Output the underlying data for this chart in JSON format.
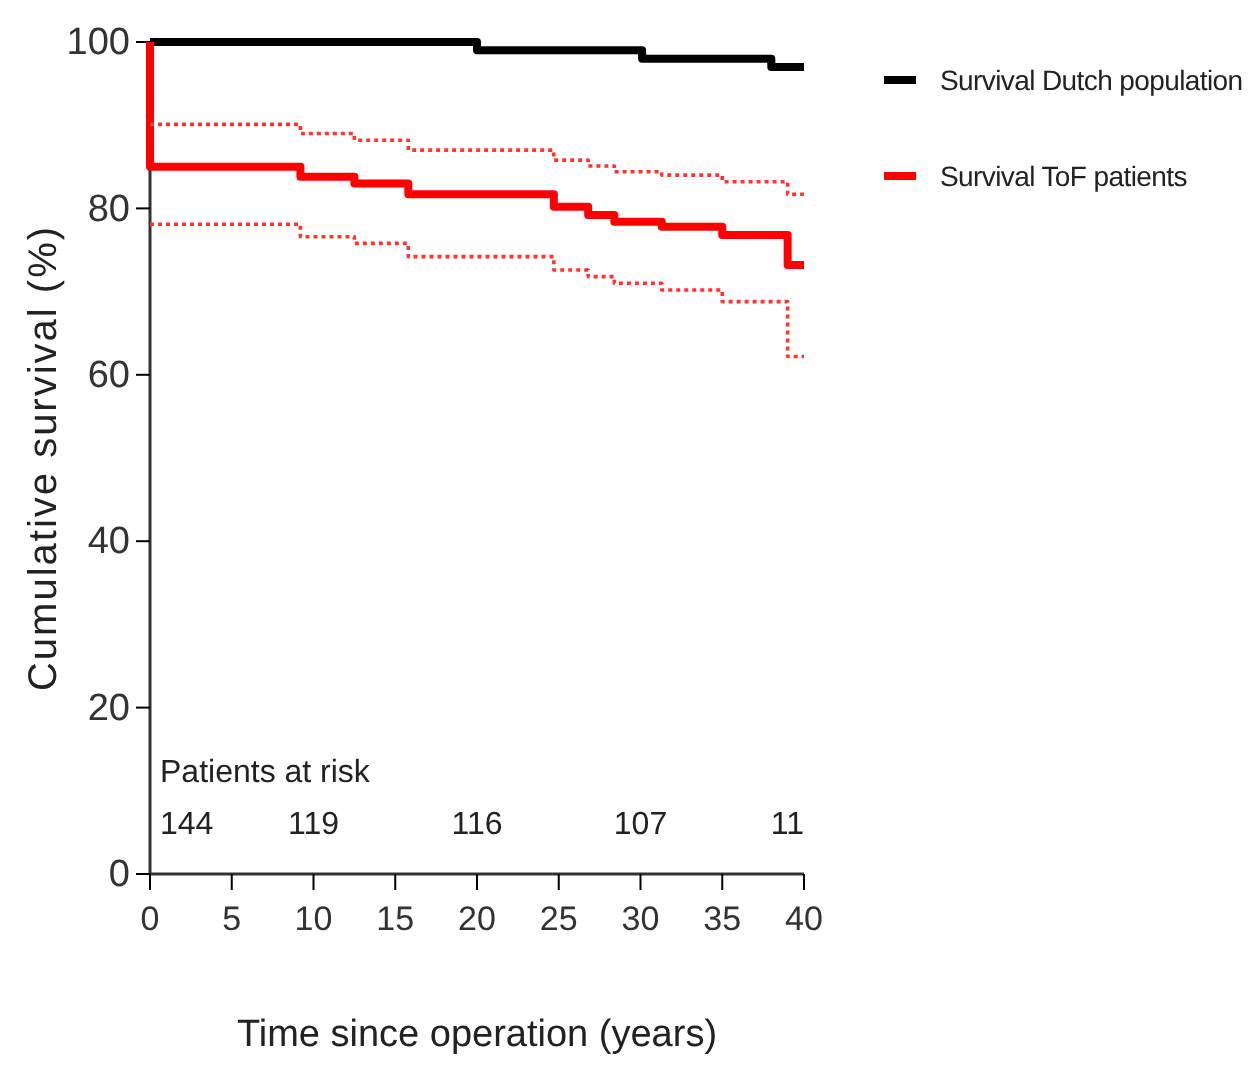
{
  "chart_data": {
    "type": "step",
    "xlabel": "Time since operation (years)",
    "ylabel": "Cumulative survival (%)",
    "xlim": [
      0,
      40
    ],
    "xticks": [
      0,
      5,
      10,
      15,
      20,
      25,
      30,
      35,
      40
    ],
    "ylim": [
      0,
      100
    ],
    "yticks": [
      0,
      20,
      40,
      60,
      80,
      100
    ],
    "grid": false,
    "legend": "top right",
    "marker": "none",
    "series": [
      {
        "name": "Survival Dutch population",
        "color": "#000000",
        "line_style": "solid",
        "x": [
          0,
          20,
          30.1,
          38,
          40
        ],
        "values": [
          100,
          99,
          98,
          97,
          97
        ]
      },
      {
        "name": "Survival ToF patients",
        "color": "#ff0000",
        "line_style": "solid",
        "x": [
          0,
          0,
          9.2,
          12.5,
          15.8,
          24.7,
          26.8,
          28.4,
          31.3,
          35,
          39,
          40
        ],
        "values": [
          100,
          85,
          83.8,
          83,
          81.7,
          80.2,
          79.2,
          78.4,
          77.8,
          76.8,
          73.2,
          73.2
        ]
      },
      {
        "color": "#ff3333",
        "line_style": "dotted",
        "x": [
          0,
          9.2,
          12.5,
          15.8,
          24.7,
          26.8,
          28.4,
          31.3,
          35,
          39,
          40
        ],
        "values": [
          90.1,
          89,
          88.2,
          87,
          85.8,
          85.1,
          84.4,
          84,
          83.2,
          81.7,
          81.7
        ]
      },
      {
        "color": "#ff3333",
        "line_style": "dotted",
        "x": [
          0,
          9.2,
          12.5,
          15.8,
          24.7,
          26.8,
          28.4,
          31.3,
          35,
          39,
          40
        ],
        "values": [
          78.1,
          76.6,
          75.8,
          74.2,
          72.6,
          71.8,
          71,
          70.2,
          68.8,
          62.2,
          62.2
        ]
      }
    ],
    "annotations": [
      "Patients at risk",
      "144",
      "119",
      "116",
      "107",
      "11"
    ]
  }
}
